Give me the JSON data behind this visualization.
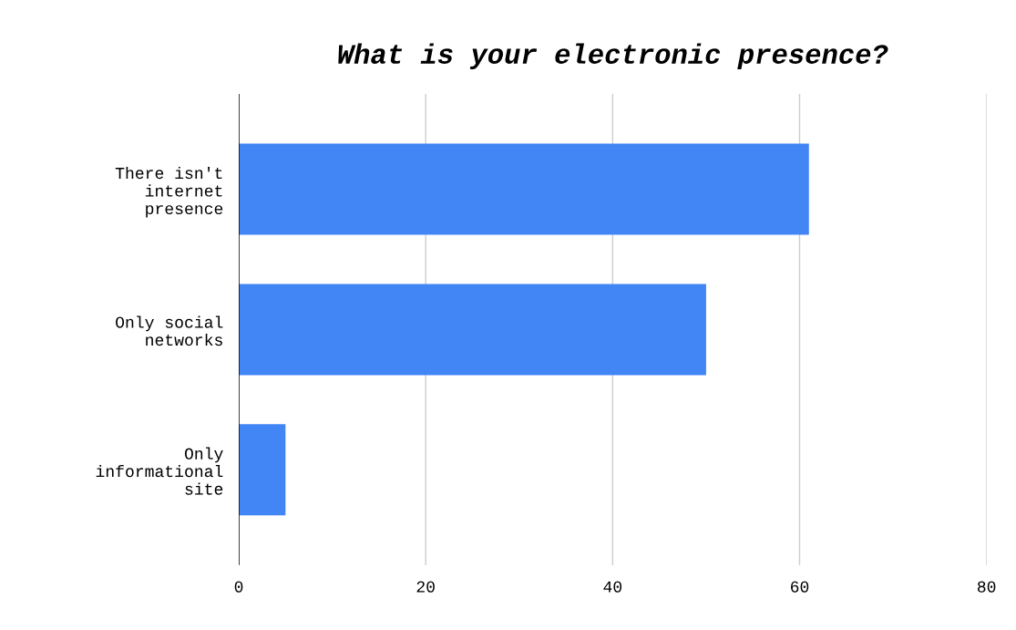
{
  "chart_data": {
    "type": "bar",
    "orientation": "horizontal",
    "title": "What is your electronic presence?",
    "categories": [
      "There isn't\ninternet\npresence",
      "Only social\nnetworks",
      "Only\ninformational\nsite"
    ],
    "values": [
      61,
      50,
      5
    ],
    "color": "#4285f4",
    "xlim": [
      0,
      80
    ],
    "xticks": [
      0,
      20,
      40,
      60,
      80
    ],
    "grid": "x",
    "legend": false
  }
}
